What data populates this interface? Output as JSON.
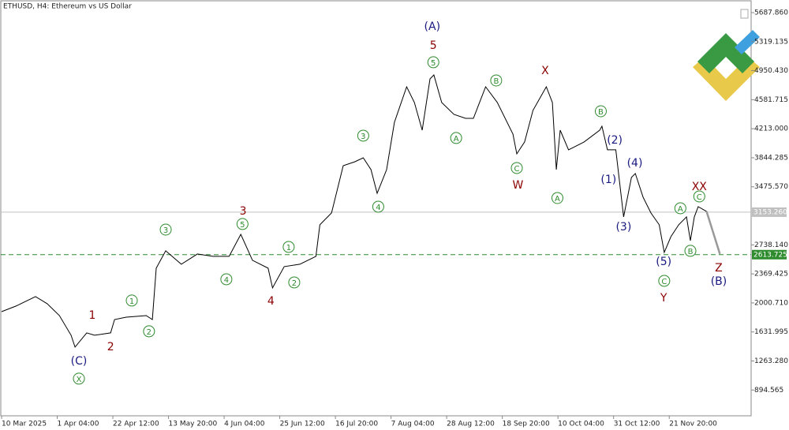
{
  "chart_data": {
    "type": "line",
    "title": "ETHUSD, H4:  Ethereum vs US Dollar",
    "xlim": [
      0,
      13.5
    ],
    "ylim": [
      567,
      5848
    ],
    "xticks": [
      {
        "value": 0,
        "label": "10 Mar 2025"
      },
      {
        "value": 1,
        "label": "1 Apr 04:00"
      },
      {
        "value": 2,
        "label": "22 Apr 12:00"
      },
      {
        "value": 3,
        "label": "13 May 20:00"
      },
      {
        "value": 4,
        "label": "4 Jun 04:00"
      },
      {
        "value": 5,
        "label": "25 Jun 12:00"
      },
      {
        "value": 6,
        "label": "16 Jul 20:00"
      },
      {
        "value": 7,
        "label": "7 Aug 04:00"
      },
      {
        "value": 8,
        "label": "28 Aug 12:00"
      },
      {
        "value": 9,
        "label": "18 Sep 20:00"
      },
      {
        "value": 10,
        "label": "10 Oct 04:00"
      },
      {
        "value": 11,
        "label": "31 Oct 12:00"
      },
      {
        "value": 12,
        "label": "21 Nov 20:00"
      }
    ],
    "yticks": [
      {
        "value": 5687.86,
        "label": "5687.860"
      },
      {
        "value": 5319.135,
        "label": "5319.135"
      },
      {
        "value": 4950.43,
        "label": "4950.430"
      },
      {
        "value": 4581.715,
        "label": "4581.715"
      },
      {
        "value": 4213,
        "label": "4213.000"
      },
      {
        "value": 3844.285,
        "label": "3844.285"
      },
      {
        "value": 3475.57,
        "label": "3475.570"
      },
      {
        "value": 2738.14,
        "label": "2738.140"
      },
      {
        "value": 2369.425,
        "label": "2369.425"
      },
      {
        "value": 2000.71,
        "label": "2000.710"
      },
      {
        "value": 1631.995,
        "label": "1631.995"
      },
      {
        "value": 1263.28,
        "label": "1263.280"
      },
      {
        "value": 894.565,
        "label": "894.565"
      }
    ],
    "series": [
      {
        "color": "#000000",
        "x": [
          0,
          0.26,
          0.61,
          0.82,
          1.04,
          1.25,
          1.32,
          1.53,
          1.67,
          1.96,
          2.03,
          2.24,
          2.6,
          2.71,
          2.78,
          2.95,
          3.23,
          3.52,
          3.8,
          4.09,
          4.3,
          4.51,
          4.79,
          4.87,
          5.08,
          5.36,
          5.65,
          5.72,
          5.93,
          6.14,
          6.35,
          6.5,
          6.64,
          6.75,
          6.92,
          7.06,
          7.28,
          7.42,
          7.56,
          7.7,
          7.77,
          7.91,
          8.13,
          8.34,
          8.48,
          8.7,
          8.91,
          9.19,
          9.26,
          9.4,
          9.55,
          9.79,
          9.9,
          9.97,
          10.04,
          10.19,
          10.47,
          10.75,
          10.79,
          10.89,
          11.04,
          11.18,
          11.32,
          11.39,
          11.53,
          11.67,
          11.82,
          11.91,
          12.03,
          12.17,
          12.31,
          12.38,
          12.45,
          12.52,
          12.67
        ],
        "values": [
          1890,
          1961,
          2081,
          1991,
          1840,
          1590,
          1440,
          1620,
          1590,
          1620,
          1790,
          1820,
          1840,
          1790,
          2442,
          2662,
          2492,
          2622,
          2592,
          2592,
          2872,
          2542,
          2442,
          2191,
          2462,
          2492,
          2592,
          2993,
          3143,
          3744,
          3794,
          3844,
          3694,
          3393,
          3694,
          4295,
          4746,
          4546,
          4195,
          4846,
          4896,
          4546,
          4395,
          4345,
          4345,
          4746,
          4546,
          4145,
          3894,
          4045,
          4446,
          4746,
          4546,
          3694,
          4195,
          3945,
          4045,
          4195,
          4245,
          3945,
          3945,
          3093,
          3594,
          3644,
          3343,
          3143,
          2993,
          2642,
          2842,
          2993,
          3093,
          2792,
          3093,
          3223,
          3163
        ]
      }
    ],
    "projection": {
      "color": "#999999",
      "x": [
        12.67,
        12.91
      ],
      "values": [
        3163,
        2622
      ]
    },
    "hlines": [
      {
        "value": 3153.26,
        "label": "3153.260",
        "color": "#c0c0c0",
        "style": "solid"
      },
      {
        "value": 2613.725,
        "color": "#2e8b2e",
        "style": "dashed"
      }
    ],
    "annotations": [
      {
        "text": "(C)",
        "x": 1.39,
        "y": 1269,
        "color": "#1a1a80"
      },
      {
        "text": "X",
        "x": 1.39,
        "y": 1039,
        "color": "#2e8b2e",
        "circle": true
      },
      {
        "text": "1",
        "x": 1.63,
        "y": 1850,
        "color": "#8b0000"
      },
      {
        "text": "2",
        "x": 1.96,
        "y": 1450,
        "color": "#8b0000"
      },
      {
        "text": "1",
        "x": 2.34,
        "y": 2031,
        "color": "#2e8b2e",
        "circle": true
      },
      {
        "text": "2",
        "x": 2.65,
        "y": 1640,
        "color": "#2e8b2e",
        "circle": true
      },
      {
        "text": "3",
        "x": 2.95,
        "y": 2932,
        "color": "#2e8b2e",
        "circle": true
      },
      {
        "text": "4",
        "x": 4.04,
        "y": 2301,
        "color": "#2e8b2e",
        "circle": true
      },
      {
        "text": "5",
        "x": 4.33,
        "y": 3003,
        "color": "#2e8b2e",
        "circle": true
      },
      {
        "text": "3",
        "x": 4.34,
        "y": 3173,
        "color": "#8b0000"
      },
      {
        "text": "4",
        "x": 4.84,
        "y": 2031,
        "color": "#8b0000"
      },
      {
        "text": "1",
        "x": 5.16,
        "y": 2712,
        "color": "#2e8b2e",
        "circle": true
      },
      {
        "text": "2",
        "x": 5.26,
        "y": 2261,
        "color": "#2e8b2e",
        "circle": true
      },
      {
        "text": "3",
        "x": 6.5,
        "y": 4125,
        "color": "#2e8b2e",
        "circle": true
      },
      {
        "text": "4",
        "x": 6.77,
        "y": 3223,
        "color": "#2e8b2e",
        "circle": true
      },
      {
        "text": "(A)",
        "x": 7.74,
        "y": 5518,
        "color": "#1a1a80"
      },
      {
        "text": "5",
        "x": 7.76,
        "y": 5277,
        "color": "#8b0000"
      },
      {
        "text": "5",
        "x": 7.76,
        "y": 5057,
        "color": "#2e8b2e",
        "circle": true
      },
      {
        "text": "B",
        "x": 8.89,
        "y": 4826,
        "color": "#2e8b2e",
        "circle": true
      },
      {
        "text": "A",
        "x": 8.17,
        "y": 4095,
        "color": "#2e8b2e",
        "circle": true
      },
      {
        "text": "C",
        "x": 9.26,
        "y": 3714,
        "color": "#2e8b2e",
        "circle": true
      },
      {
        "text": "W",
        "x": 9.28,
        "y": 3504,
        "color": "#8b0000"
      },
      {
        "text": "X",
        "x": 9.77,
        "y": 4957,
        "color": "#8b0000"
      },
      {
        "text": "A",
        "x": 9.99,
        "y": 3333,
        "color": "#2e8b2e",
        "circle": true
      },
      {
        "text": "B",
        "x": 10.77,
        "y": 4435,
        "color": "#2e8b2e",
        "circle": true
      },
      {
        "text": "(2)",
        "x": 11.02,
        "y": 4075,
        "color": "#1a1a80"
      },
      {
        "text": "(1)",
        "x": 10.91,
        "y": 3574,
        "color": "#1a1a80"
      },
      {
        "text": "(4)",
        "x": 11.38,
        "y": 3784,
        "color": "#1a1a80"
      },
      {
        "text": "(3)",
        "x": 11.18,
        "y": 2973,
        "color": "#1a1a80"
      },
      {
        "text": "(5)",
        "x": 11.9,
        "y": 2532,
        "color": "#1a1a80"
      },
      {
        "text": "C",
        "x": 11.91,
        "y": 2281,
        "color": "#2e8b2e",
        "circle": true
      },
      {
        "text": "Y",
        "x": 11.9,
        "y": 2071,
        "color": "#8b0000"
      },
      {
        "text": "A",
        "x": 12.2,
        "y": 3203,
        "color": "#2e8b2e",
        "circle": true
      },
      {
        "text": "B",
        "x": 12.38,
        "y": 2662,
        "color": "#2e8b2e",
        "circle": true
      },
      {
        "text": "XX",
        "x": 12.54,
        "y": 3484,
        "color": "#8b0000"
      },
      {
        "text": "C",
        "x": 12.54,
        "y": 3353,
        "color": "#2e8b2e",
        "circle": true
      },
      {
        "text": "Z",
        "x": 12.89,
        "y": 2452,
        "color": "#8b0000"
      },
      {
        "text": "(B)",
        "x": 12.89,
        "y": 2281,
        "color": "#1a1a80"
      }
    ]
  }
}
